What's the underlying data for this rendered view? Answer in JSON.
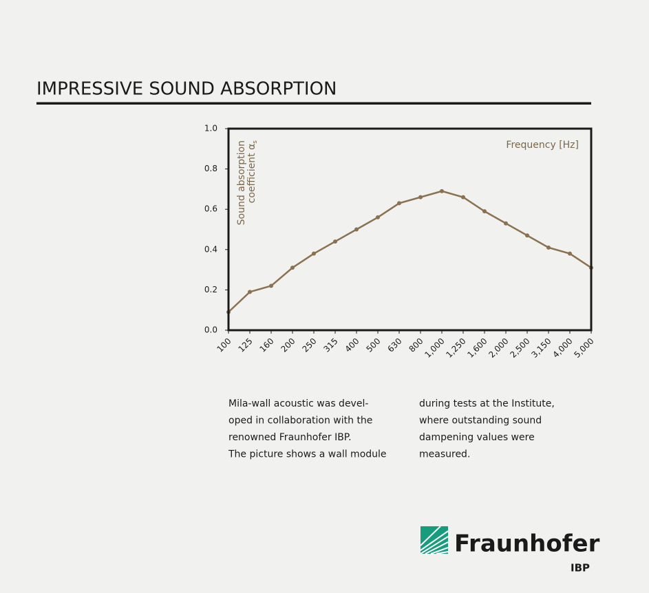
{
  "header": {
    "title": "IMPRESSIVE SOUND ABSORPTION"
  },
  "chart_data": {
    "type": "line",
    "x_label": "Frequency [Hz]",
    "y_label_lines": [
      "Sound absorption",
      "coefficient α"
    ],
    "y_label_subscript": "s",
    "categories": [
      "100",
      "125",
      "160",
      "200",
      "250",
      "315",
      "400",
      "500",
      "630",
      "800",
      "1,000",
      "1,250",
      "1,600",
      "2,000",
      "2,500",
      "3,150",
      "4,000",
      "5,000"
    ],
    "values": [
      0.09,
      0.19,
      0.22,
      0.31,
      0.38,
      0.44,
      0.5,
      0.56,
      0.63,
      0.66,
      0.69,
      0.66,
      0.59,
      0.53,
      0.47,
      0.41,
      0.38,
      0.31
    ],
    "color": "#8a7150",
    "ylim": [
      0,
      1
    ],
    "yticks": [
      {
        "value": 0,
        "label": "0.0"
      },
      0.2,
      0.4,
      0.6,
      0.8,
      {
        "value": 1,
        "label": "1.0"
      }
    ]
  },
  "text": {
    "column_1": [
      "Mila-wall acoustic was devel-",
      "oped in collaboration with the",
      "renowned Fraunhofer IBP.",
      "The picture shows a wall module"
    ],
    "column_2": [
      "during tests at the Institute,",
      "where outstanding sound",
      "dampening values were",
      "measured."
    ]
  },
  "logo": {
    "name": "Fraunhofer",
    "unit": "IBP"
  }
}
